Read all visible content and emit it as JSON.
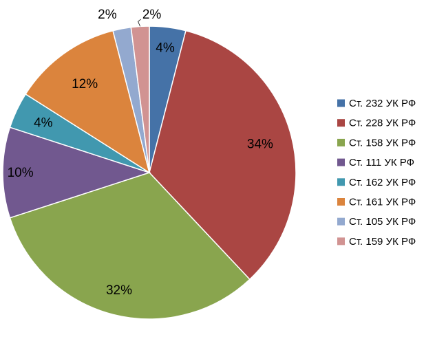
{
  "chart_data": {
    "type": "pie",
    "title": "",
    "categories": [
      "Ст. 232 УК РФ",
      "Ст. 228 УК РФ",
      "Ст. 158 УК РФ",
      "Ст. 111 УК РФ",
      "Ст. 162 УК РФ",
      "Ст. 161 УК РФ",
      "Ст. 105 УК РФ",
      "Ст. 159 УК РФ"
    ],
    "values": [
      4,
      34,
      32,
      10,
      4,
      12,
      2,
      2
    ],
    "labels": [
      "4%",
      "34%",
      "32%",
      "10%",
      "4%",
      "12%",
      "2%",
      "2%"
    ],
    "colors": [
      "#4572A7",
      "#AA4643",
      "#89A54E",
      "#71588F",
      "#4198AF",
      "#DB843D",
      "#93A9CF",
      "#D19392"
    ],
    "legend_position": "right",
    "start_angle": "12 o'clock",
    "direction": "clockwise"
  }
}
